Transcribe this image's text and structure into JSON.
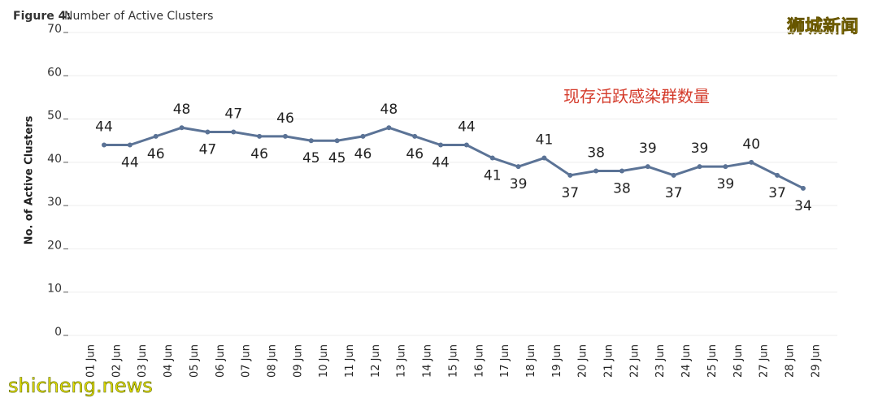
{
  "chart_data": {
    "type": "line",
    "title_prefix": "Figure 4:",
    "title": "Number of Active Clusters",
    "y_label": "No. of Active Clusters",
    "annotation": "现存活跃感染群数量",
    "watermarks": [
      "狮城新闻",
      "shicheng.news"
    ],
    "categories": [
      "01 Jun",
      "02 Jun",
      "03 Jun",
      "04 Jun",
      "05 Jun",
      "06 Jun",
      "07 Jun",
      "08 Jun",
      "09 Jun",
      "10 Jun",
      "11 Jun",
      "12 Jun",
      "13 Jun",
      "14 Jun",
      "15 Jun",
      "16 Jun",
      "17 Jun",
      "18 Jun",
      "19 Jun",
      "20 Jun",
      "21 Jun",
      "22 Jun",
      "23 Jun",
      "24 Jun",
      "25 Jun",
      "26 Jun",
      "27 Jun",
      "28 Jun",
      "29 Jun"
    ],
    "series": [
      {
        "name": "Active Clusters",
        "color": "#5b7396",
        "values": [
          44,
          44,
          46,
          48,
          47,
          47,
          46,
          46,
          45,
          45,
          46,
          48,
          46,
          44,
          44,
          41,
          39,
          41,
          37,
          38,
          38,
          39,
          37,
          39,
          39,
          40,
          37,
          34,
          null
        ]
      }
    ],
    "ylim": [
      0,
      70
    ],
    "yticks": [
      0,
      10,
      20,
      30,
      40,
      50,
      60,
      70
    ],
    "grid": true
  }
}
